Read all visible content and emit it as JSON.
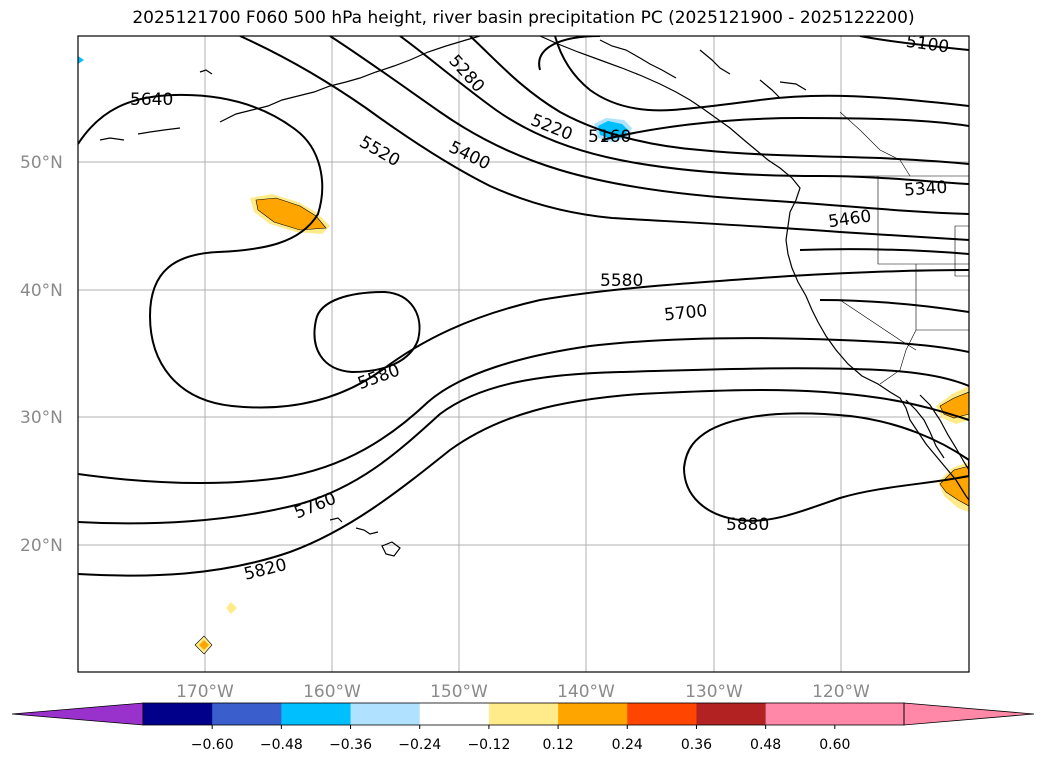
{
  "title": "2025121700 F060 500 hPa height, river basin precipitation PC (2025121900 - 2025122200)",
  "map": {
    "lat_labels": [
      "50°N",
      "40°N",
      "30°N",
      "20°N"
    ],
    "lon_labels": [
      "170°W",
      "160°W",
      "150°W",
      "140°W",
      "130°W",
      "120°W"
    ],
    "contour_labels": [
      "5100",
      "5160",
      "5220",
      "5280",
      "5340",
      "5400",
      "5460",
      "5520",
      "5580",
      "5580",
      "5640",
      "5700",
      "5760",
      "5820",
      "5880"
    ],
    "colors": {
      "frame": "#000000",
      "grid": "#b0b0b0",
      "coast": "#000000",
      "contour": "#000000"
    }
  },
  "colorbar": {
    "ticks": [
      "−0.60",
      "−0.48",
      "−0.36",
      "−0.24",
      "−0.12",
      "0.12",
      "0.24",
      "0.36",
      "0.48",
      "0.60"
    ],
    "colors": [
      "#9932cc",
      "#00008b",
      "#3a5fcd",
      "#00bfff",
      "#b0e2ff",
      "#ffffff",
      "#ffeb8a",
      "#ffa500",
      "#ff4500",
      "#b22222",
      "#ff88a8",
      "#ff88a8"
    ]
  }
}
